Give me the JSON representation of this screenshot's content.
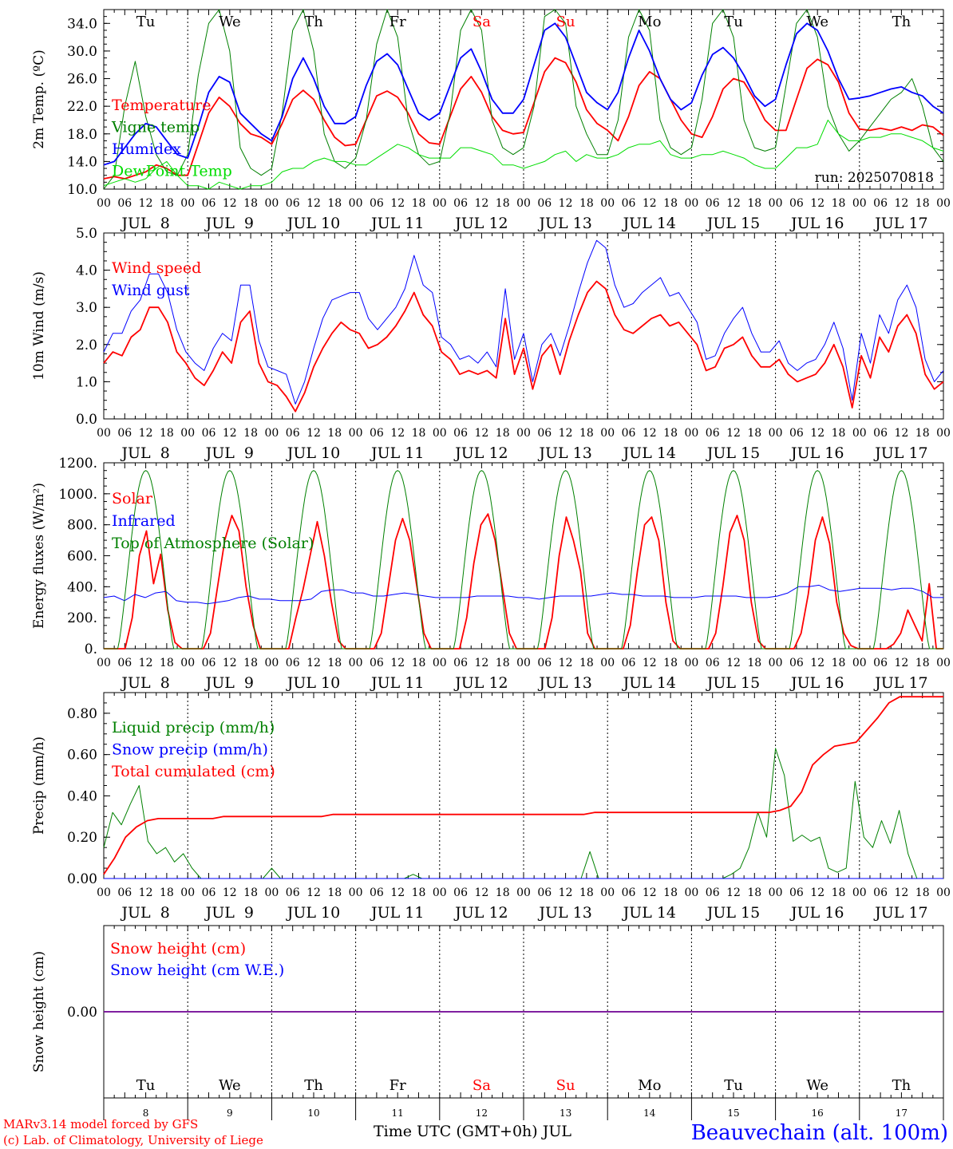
{
  "days": [
    "Tu",
    "We",
    "Th",
    "Fr",
    "Sa",
    "Su",
    "Mo",
    "Tu",
    "We",
    "Th"
  ],
  "weekend_days": [
    4,
    5
  ],
  "day_nums": [
    "8",
    "9",
    "10",
    "11",
    "12",
    "13",
    "14",
    "15",
    "16",
    "17"
  ],
  "date_labels": [
    "JUL  8",
    "JUL  9",
    "JUL 10",
    "JUL 11",
    "JUL 12",
    "JUL 13",
    "JUL 14",
    "JUL 15",
    "JUL 16",
    "JUL 17"
  ],
  "hour_ticks": [
    "00",
    "06",
    "12",
    "18"
  ],
  "hour_end": "00",
  "colors": {
    "red": "#ff0000",
    "green": "#008000",
    "blue": "#0000ff",
    "lightgreen": "#00dd00",
    "dashes": "#000000"
  },
  "footer": {
    "model": "MARv3.14 model forced by GFS",
    "lab": "(c) Lab. of Climatology, University of Liege",
    "xaxis": "Time UTC (GMT+0h) JUL",
    "station": "Beauvechain (alt. 100m)"
  },
  "run_label": "run: 2025070818",
  "chart_data": [
    {
      "type": "line",
      "ylabel": "2m Temp. (ºC)",
      "ylim": [
        10,
        36
      ],
      "yticks": [
        "10.0",
        "14.0",
        "18.0",
        "22.0",
        "26.0",
        "30.0",
        "34.0"
      ],
      "grid": false,
      "legend": [
        "Temperature",
        "Vigne temp",
        "Humidex",
        "DewPoint Temp"
      ],
      "series": [
        {
          "name": "Temperature",
          "color": "red",
          "values": [
            11.5,
            11.8,
            11.5,
            12.0,
            12.5,
            13.5,
            13.0,
            12.0,
            12.0,
            16.5,
            21.0,
            23.3,
            22.0,
            19.5,
            18.0,
            17.5,
            16.5,
            19.5,
            23.0,
            24.3,
            23.0,
            20.0,
            17.5,
            16.3,
            16.5,
            20.0,
            23.5,
            24.2,
            23.3,
            21.0,
            18.0,
            16.7,
            16.5,
            20.5,
            24.5,
            26.3,
            24.0,
            20.5,
            18.5,
            18.0,
            18.2,
            22.5,
            27.0,
            29.0,
            28.3,
            25.5,
            21.5,
            19.5,
            18.5,
            17.0,
            20.5,
            25.0,
            27.0,
            26.0,
            23.0,
            20.0,
            18.0,
            17.5,
            20.5,
            24.5,
            26.0,
            25.5,
            23.0,
            20.0,
            18.5,
            18.5,
            23.0,
            27.5,
            28.8,
            28.0,
            25.5,
            21.0,
            18.7,
            18.5,
            18.8,
            18.5,
            19.0,
            18.5,
            19.3,
            19.0,
            17.8
          ]
        },
        {
          "name": "Vigne temp",
          "color": "green",
          "values": [
            10.0,
            12.0,
            22.0,
            28.5,
            20.5,
            15.0,
            12.5,
            12.0,
            15.0,
            26.5,
            34.0,
            36.0,
            30.0,
            16.0,
            13.0,
            12.0,
            13.0,
            21.0,
            33.0,
            36.0,
            30.0,
            18.0,
            14.0,
            13.0,
            14.5,
            20.0,
            31.0,
            37.0,
            32.0,
            20.0,
            15.0,
            13.5,
            14.0,
            21.0,
            33.0,
            38.0,
            33.0,
            20.0,
            16.0,
            15.0,
            16.0,
            22.0,
            35.0,
            39.0,
            34.0,
            22.0,
            18.0,
            15.0,
            15.0,
            20.0,
            32.0,
            37.0,
            33.0,
            20.0,
            16.0,
            15.0,
            16.0,
            23.0,
            34.0,
            37.0,
            32.0,
            20.0,
            16.0,
            15.5,
            16.0,
            25.0,
            34.0,
            37.0,
            32.0,
            22.0,
            18.0,
            15.5,
            17.0,
            19.0,
            21.0,
            23.0,
            24.0,
            26.0,
            22.0,
            16.0,
            14.0
          ]
        },
        {
          "name": "Humidex",
          "color": "blue",
          "values": [
            13.5,
            14.0,
            16.0,
            18.0,
            19.5,
            19.0,
            17.0,
            15.0,
            14.5,
            19.0,
            24.0,
            26.3,
            25.5,
            21.0,
            19.5,
            18.0,
            17.0,
            20.5,
            26.0,
            29.0,
            26.0,
            22.0,
            19.5,
            19.5,
            20.5,
            25.0,
            28.5,
            29.6,
            28.0,
            24.5,
            21.0,
            20.0,
            21.0,
            25.0,
            29.0,
            30.3,
            27.0,
            23.0,
            21.0,
            21.0,
            23.0,
            28.0,
            33.0,
            34.0,
            32.0,
            28.0,
            24.0,
            22.5,
            21.5,
            24.0,
            29.0,
            33.0,
            30.0,
            26.0,
            23.0,
            21.5,
            22.5,
            26.5,
            29.5,
            30.5,
            29.0,
            26.5,
            23.5,
            22.0,
            23.0,
            28.0,
            32.5,
            34.0,
            33.0,
            30.0,
            26.0,
            23.0,
            23.2,
            23.5,
            24.0,
            24.5,
            24.8,
            24.0,
            23.5,
            22.0,
            21.0
          ]
        },
        {
          "name": "DewPoint Temp",
          "color": "lightgreen",
          "values": [
            10.5,
            11.0,
            11.5,
            11.0,
            11.5,
            13.0,
            14.0,
            12.0,
            10.5,
            10.5,
            10.0,
            11.0,
            10.5,
            10.0,
            10.5,
            10.5,
            11.0,
            12.5,
            13.0,
            13.0,
            14.0,
            14.5,
            14.0,
            14.0,
            13.5,
            13.5,
            14.5,
            15.5,
            16.5,
            16.0,
            15.0,
            14.5,
            14.5,
            14.5,
            16.0,
            16.0,
            15.5,
            15.0,
            13.5,
            13.5,
            13.0,
            13.5,
            14.0,
            15.0,
            15.5,
            14.0,
            15.0,
            14.5,
            14.5,
            15.0,
            16.0,
            16.5,
            16.5,
            17.0,
            15.0,
            14.5,
            14.5,
            15.0,
            15.0,
            15.5,
            15.0,
            14.5,
            13.5,
            13.0,
            13.0,
            14.5,
            16.0,
            16.0,
            16.5,
            20.0,
            18.0,
            17.0,
            17.0,
            17.5,
            17.5,
            18.0,
            18.0,
            17.5,
            17.0,
            16.0,
            15.5
          ]
        }
      ]
    },
    {
      "type": "line",
      "ylabel": "10m Wind (m/s)",
      "ylim": [
        0,
        5
      ],
      "yticks": [
        "0.0",
        "1.0",
        "2.0",
        "3.0",
        "4.0",
        "5.0"
      ],
      "grid": false,
      "legend": [
        "Wind speed",
        "Wind gust"
      ],
      "series": [
        {
          "name": "Wind speed",
          "color": "red",
          "values": [
            1.5,
            1.8,
            1.7,
            2.2,
            2.4,
            3.0,
            3.0,
            2.6,
            1.8,
            1.5,
            1.1,
            0.9,
            1.3,
            1.8,
            1.5,
            2.6,
            2.9,
            1.5,
            1.0,
            0.9,
            0.6,
            0.2,
            0.7,
            1.4,
            1.9,
            2.3,
            2.6,
            2.4,
            2.3,
            1.9,
            2.0,
            2.2,
            2.5,
            2.9,
            3.4,
            2.8,
            2.5,
            1.8,
            1.6,
            1.2,
            1.3,
            1.2,
            1.3,
            1.1,
            2.7,
            1.2,
            1.9,
            0.8,
            1.7,
            2.0,
            1.2,
            2.1,
            2.8,
            3.4,
            3.7,
            3.5,
            2.8,
            2.4,
            2.3,
            2.5,
            2.7,
            2.8,
            2.5,
            2.6,
            2.3,
            2.0,
            1.3,
            1.4,
            1.9,
            2.0,
            2.2,
            1.7,
            1.4,
            1.4,
            1.6,
            1.2,
            1.0,
            1.1,
            1.2,
            1.5,
            2.0,
            1.4,
            0.3,
            1.7,
            1.1,
            2.2,
            1.8,
            2.5,
            2.8,
            2.3,
            1.2,
            0.8,
            1.0
          ]
        },
        {
          "name": "Wind gust",
          "color": "blue",
          "values": [
            1.8,
            2.3,
            2.3,
            2.9,
            3.2,
            3.9,
            3.9,
            3.4,
            2.4,
            1.8,
            1.5,
            1.3,
            1.9,
            2.3,
            2.1,
            3.6,
            3.6,
            2.1,
            1.4,
            1.3,
            1.2,
            0.4,
            1.0,
            1.9,
            2.7,
            3.2,
            3.3,
            3.4,
            3.4,
            2.7,
            2.4,
            2.7,
            3.0,
            3.5,
            4.4,
            3.6,
            3.4,
            2.2,
            2.0,
            1.6,
            1.7,
            1.5,
            1.8,
            1.4,
            3.5,
            1.6,
            2.3,
            1.0,
            2.0,
            2.3,
            1.7,
            2.5,
            3.4,
            4.2,
            4.8,
            4.6,
            3.6,
            3.0,
            3.1,
            3.4,
            3.6,
            3.8,
            3.3,
            3.4,
            3.0,
            2.6,
            1.6,
            1.7,
            2.3,
            2.7,
            3.0,
            2.3,
            1.8,
            1.8,
            2.1,
            1.5,
            1.3,
            1.5,
            1.6,
            2.0,
            2.6,
            1.9,
            0.5,
            2.3,
            1.5,
            2.8,
            2.3,
            3.2,
            3.6,
            3.0,
            1.6,
            1.0,
            1.3
          ]
        }
      ]
    },
    {
      "type": "line",
      "ylabel": "Energy fluxes (W/m²)",
      "ylim": [
        0,
        1200
      ],
      "yticks": [
        "0.",
        "200.",
        "400.",
        "600.",
        "800.",
        "1000.",
        "1200."
      ],
      "grid": false,
      "legend": [
        "Solar",
        "Infrared",
        "Top of Atmosphere (Solar)"
      ],
      "series": [
        {
          "name": "Solar",
          "color": "red",
          "values": [
            0,
            0,
            0,
            0,
            200,
            600,
            760,
            420,
            610,
            250,
            40,
            0,
            0,
            0,
            0,
            100,
            400,
            700,
            860,
            760,
            400,
            150,
            0,
            0,
            0,
            0,
            0,
            200,
            380,
            600,
            820,
            600,
            300,
            50,
            0,
            0,
            0,
            0,
            0,
            100,
            400,
            700,
            840,
            700,
            400,
            100,
            0,
            0,
            0,
            0,
            0,
            200,
            550,
            800,
            870,
            700,
            400,
            100,
            0,
            0,
            0,
            0,
            0,
            200,
            600,
            850,
            700,
            500,
            100,
            0,
            0,
            0,
            0,
            0,
            150,
            500,
            800,
            850,
            700,
            300,
            50,
            0,
            0,
            0,
            0,
            0,
            100,
            400,
            750,
            860,
            700,
            300,
            50,
            0,
            0,
            0,
            0,
            0,
            100,
            350,
            700,
            850,
            680,
            300,
            100,
            20,
            0,
            0,
            0,
            0,
            0,
            30,
            100,
            250,
            150,
            50,
            420,
            0,
            0
          ]
        },
        {
          "name": "Infrared",
          "color": "blue",
          "values": [
            330,
            340,
            310,
            350,
            330,
            360,
            370,
            310,
            300,
            300,
            290,
            300,
            310,
            330,
            340,
            320,
            320,
            310,
            310,
            310,
            320,
            370,
            380,
            380,
            360,
            360,
            340,
            340,
            350,
            360,
            350,
            340,
            330,
            330,
            330,
            330,
            340,
            340,
            340,
            340,
            330,
            330,
            320,
            330,
            340,
            340,
            340,
            340,
            350,
            360,
            350,
            350,
            340,
            340,
            340,
            330,
            330,
            330,
            340,
            340,
            340,
            340,
            330,
            330,
            330,
            340,
            360,
            400,
            400,
            410,
            380,
            370,
            380,
            390,
            390,
            390,
            380,
            390,
            390,
            370,
            330,
            330
          ]
        },
        {
          "name": "Top of Atmosphere (Solar)",
          "color": "green",
          "peak": 1150
        }
      ]
    },
    {
      "type": "line",
      "ylabel": "Precip (mm/h)",
      "ylim": [
        0,
        0.9
      ],
      "yticks": [
        "0.00",
        "0.20",
        "0.40",
        "0.60",
        "0.80"
      ],
      "grid": false,
      "legend": [
        "Liquid precip (mm/h)",
        "Snow precip (mm/h)",
        "Total cumulated (cm)"
      ],
      "series": [
        {
          "name": "Liquid precip (mm/h)",
          "color": "green",
          "values": [
            0.15,
            0.32,
            0.26,
            0.36,
            0.45,
            0.18,
            0.12,
            0.15,
            0.08,
            0.12,
            0.05,
            0.0,
            0.0,
            0.0,
            0.0,
            0.0,
            0.0,
            0.0,
            0.0,
            0.05,
            0.0,
            0.0,
            0.0,
            0.0,
            0.0,
            0.0,
            0.0,
            0.0,
            0.0,
            0.0,
            0.0,
            0.0,
            0.0,
            0.0,
            0.0,
            0.02,
            0.0,
            0.0,
            0.0,
            0.0,
            0.0,
            0.0,
            0.0,
            0.0,
            0.0,
            0.0,
            0.0,
            0.0,
            0.0,
            0.0,
            0.0,
            0.0,
            0.0,
            0.0,
            0.0,
            0.13,
            0.0,
            0.0,
            0.0,
            0.0,
            0.0,
            0.0,
            0.0,
            0.0,
            0.0,
            0.0,
            0.0,
            0.0,
            0.0,
            0.0,
            0.0,
            0.02,
            0.05,
            0.15,
            0.32,
            0.2,
            0.63,
            0.5,
            0.18,
            0.21,
            0.18,
            0.2,
            0.05,
            0.03,
            0.05,
            0.47,
            0.2,
            0.15,
            0.28,
            0.17,
            0.33,
            0.12,
            0.0,
            0.0,
            0.0,
            0.0
          ]
        },
        {
          "name": "Snow precip (mm/h)",
          "color": "blue",
          "values": [
            0,
            0
          ]
        },
        {
          "name": "Total cumulated (cm)",
          "color": "red",
          "values": [
            0.02,
            0.1,
            0.2,
            0.25,
            0.28,
            0.29,
            0.29,
            0.29,
            0.29,
            0.29,
            0.29,
            0.3,
            0.3,
            0.3,
            0.3,
            0.3,
            0.3,
            0.3,
            0.3,
            0.3,
            0.3,
            0.31,
            0.31,
            0.31,
            0.31,
            0.31,
            0.31,
            0.31,
            0.31,
            0.31,
            0.31,
            0.31,
            0.31,
            0.31,
            0.31,
            0.31,
            0.31,
            0.31,
            0.31,
            0.31,
            0.31,
            0.31,
            0.31,
            0.31,
            0.31,
            0.32,
            0.32,
            0.32,
            0.32,
            0.32,
            0.32,
            0.32,
            0.32,
            0.32,
            0.32,
            0.32,
            0.32,
            0.32,
            0.32,
            0.32,
            0.32,
            0.32,
            0.33,
            0.35,
            0.42,
            0.55,
            0.6,
            0.64,
            0.65,
            0.66,
            0.72,
            0.78,
            0.85,
            0.88,
            0.88,
            0.88,
            0.88,
            0.88
          ]
        }
      ]
    },
    {
      "type": "line",
      "ylabel": "Snow height (cm)",
      "ylim": [
        -1,
        1
      ],
      "yticks": [
        "0.00"
      ],
      "grid": false,
      "legend": [
        "Snow height (cm)",
        "Snow height (cm W.E.)"
      ],
      "series": [
        {
          "name": "Snow height (cm)",
          "color": "red",
          "values": [
            0,
            0
          ]
        },
        {
          "name": "Snow height (cm W.E.)",
          "color": "blue",
          "values": [
            0,
            0
          ]
        }
      ]
    }
  ]
}
